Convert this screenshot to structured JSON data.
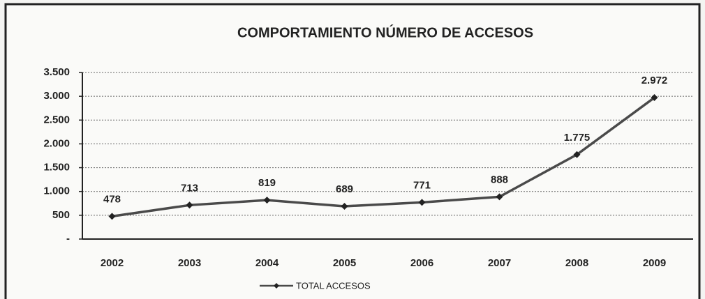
{
  "chart_data": {
    "type": "line",
    "title": "COMPORTAMIENTO NÚMERO DE ACCESOS",
    "categories": [
      "2002",
      "2003",
      "2004",
      "2005",
      "2006",
      "2007",
      "2008",
      "2009"
    ],
    "series": [
      {
        "name": "TOTAL ACCESOS",
        "color": "#4a4a4a",
        "values": [
          478,
          713,
          819,
          689,
          771,
          888,
          1775,
          2972
        ],
        "value_labels": [
          "478",
          "713",
          "819",
          "689",
          "771",
          "888",
          "1.775",
          "2.972"
        ]
      }
    ],
    "ylim": [
      0,
      3500
    ],
    "yticks": [
      {
        "value": 0,
        "label": "-"
      },
      500,
      {
        "value": 1000,
        "label": "1.000"
      },
      {
        "value": 1500,
        "label": "1.500"
      },
      {
        "value": 2000,
        "label": "2.000"
      },
      {
        "value": 2500,
        "label": "2.500"
      },
      {
        "value": 3000,
        "label": "3.000"
      },
      {
        "value": 3500,
        "label": "3.500"
      }
    ],
    "grid": true,
    "legend": "bottom"
  }
}
